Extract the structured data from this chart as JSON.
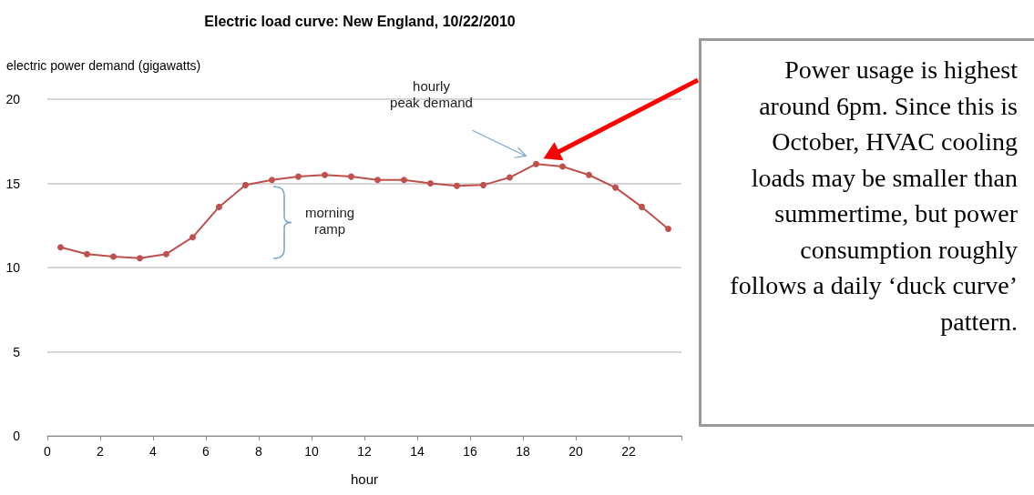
{
  "chart_data": {
    "type": "line",
    "title": "Electric load curve: New England, 10/22/2010",
    "xlabel": "hour",
    "ylabel": "electric power demand (gigawatts)",
    "x": [
      0.5,
      1.5,
      2.5,
      3.5,
      4.5,
      5.5,
      6.5,
      7.5,
      8.5,
      9.5,
      10.5,
      11.5,
      12.5,
      13.5,
      14.5,
      15.5,
      16.5,
      17.5,
      18.5,
      19.5,
      20.5,
      21.5,
      22.5,
      23.5
    ],
    "series": [
      {
        "color": "#c0504d",
        "values": [
          11.2,
          10.8,
          10.65,
          10.55,
          10.8,
          11.8,
          13.6,
          14.9,
          15.2,
          15.4,
          15.5,
          15.4,
          15.2,
          15.2,
          15.0,
          14.85,
          14.9,
          15.35,
          16.15,
          16.0,
          15.5,
          14.75,
          13.6,
          12.3
        ]
      }
    ],
    "xlim": [
      0,
      24
    ],
    "xticks": [
      0,
      2,
      4,
      6,
      8,
      10,
      12,
      14,
      16,
      18,
      20,
      22,
      {
        "value": 24,
        "label": null
      }
    ],
    "ylim": [
      0,
      20
    ],
    "yticks": [
      0,
      5,
      10,
      15,
      20
    ],
    "grid": "y",
    "marker": "circle",
    "line_style": "solid",
    "annotations": [
      "hourly\npeak demand",
      "morning\nramp",
      "Power usage is highest around 6pm.  Since this is October, HVAC cooling loads may be smaller than summertime, but power consumption roughly follows a daily ‘duck curve’ pattern."
    ]
  }
}
